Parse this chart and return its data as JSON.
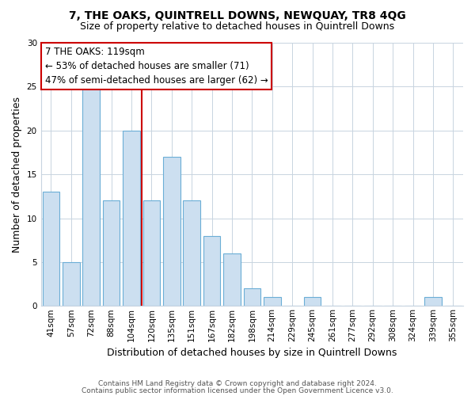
{
  "title": "7, THE OAKS, QUINTRELL DOWNS, NEWQUAY, TR8 4QG",
  "subtitle": "Size of property relative to detached houses in Quintrell Downs",
  "xlabel": "Distribution of detached houses by size in Quintrell Downs",
  "ylabel": "Number of detached properties",
  "bar_labels": [
    "41sqm",
    "57sqm",
    "72sqm",
    "88sqm",
    "104sqm",
    "120sqm",
    "135sqm",
    "151sqm",
    "167sqm",
    "182sqm",
    "198sqm",
    "214sqm",
    "229sqm",
    "245sqm",
    "261sqm",
    "277sqm",
    "292sqm",
    "308sqm",
    "324sqm",
    "339sqm",
    "355sqm"
  ],
  "bar_values": [
    13,
    5,
    25,
    12,
    20,
    12,
    17,
    12,
    8,
    6,
    2,
    1,
    0,
    1,
    0,
    0,
    0,
    0,
    0,
    1,
    0
  ],
  "bar_color": "#ccdff0",
  "bar_edge_color": "#6baed6",
  "vline_x": 4.5,
  "vline_color": "#cc0000",
  "ylim": [
    0,
    30
  ],
  "yticks": [
    0,
    5,
    10,
    15,
    20,
    25,
    30
  ],
  "annotation_line1": "7 THE OAKS: 119sqm",
  "annotation_line2": "← 53% of detached houses are smaller (71)",
  "annotation_line3": "47% of semi-detached houses are larger (62) →",
  "annotation_box_edge": "#cc0000",
  "footer1": "Contains HM Land Registry data © Crown copyright and database right 2024.",
  "footer2": "Contains public sector information licensed under the Open Government Licence v3.0.",
  "title_fontsize": 10,
  "subtitle_fontsize": 9,
  "annotation_fontsize": 8.5,
  "ylabel_fontsize": 9,
  "xlabel_fontsize": 9,
  "tick_fontsize": 7.5,
  "footer_fontsize": 6.5,
  "grid_color": "#c8d4e0",
  "bar_width": 0.85
}
